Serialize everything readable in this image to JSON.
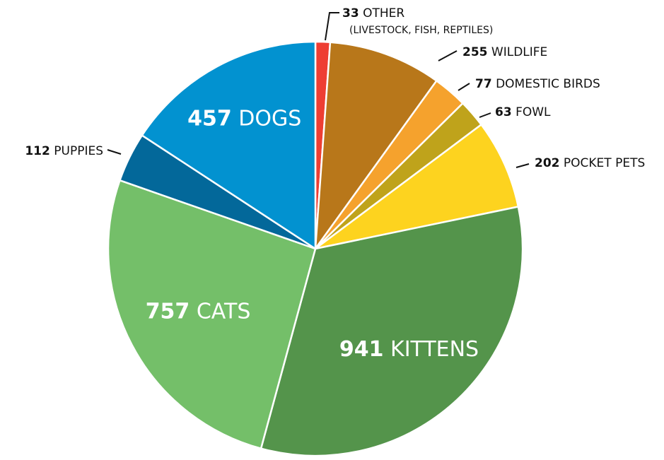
{
  "chart_data": {
    "type": "pie",
    "title": "",
    "start_angle_deg": 0,
    "direction": "clockwise",
    "slices": [
      {
        "value": 33,
        "name": "OTHER",
        "sublabel": "(LIVESTOCK, FISH, REPTILES)",
        "color": "#ee3e33",
        "label_position": "outside"
      },
      {
        "value": 255,
        "name": "WILDLIFE",
        "color": "#b8771a",
        "label_position": "outside"
      },
      {
        "value": 77,
        "name": "DOMESTIC BIRDS",
        "color": "#f5a22d",
        "label_position": "outside"
      },
      {
        "value": 63,
        "name": "FOWL",
        "color": "#bfa31b",
        "label_position": "outside"
      },
      {
        "value": 202,
        "name": "POCKET PETS",
        "color": "#fdd31f",
        "label_position": "outside"
      },
      {
        "value": 941,
        "name": "KITTENS",
        "color": "#54944b",
        "label_position": "inside"
      },
      {
        "value": 757,
        "name": "CATS",
        "color": "#74bf69",
        "label_position": "inside"
      },
      {
        "value": 112,
        "name": "PUPPIES",
        "color": "#03689a",
        "label_position": "outside"
      },
      {
        "value": 457,
        "name": "DOGS",
        "color": "#0292d0",
        "label_position": "inside"
      }
    ]
  }
}
